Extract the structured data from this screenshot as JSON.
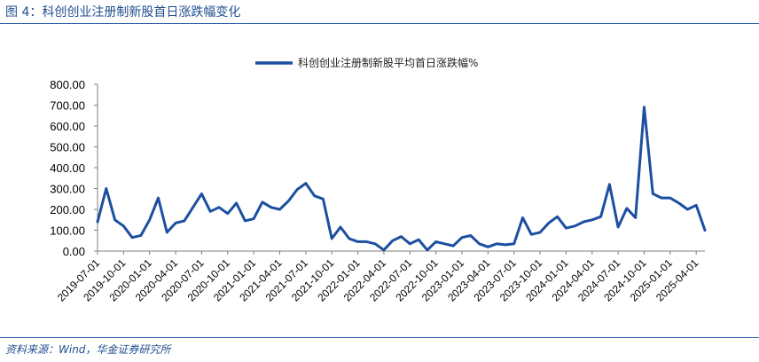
{
  "figure": {
    "title": "图 4：科创创业注册制新股首日涨跌幅变化",
    "source": "资料来源：Wind，华金证券研究所"
  },
  "colors": {
    "line": "#1d4fa0",
    "rule": "#2f63a8",
    "title": "#1f4e8f"
  },
  "chart_data": {
    "type": "line",
    "title": "",
    "xlabel": "",
    "ylabel": "",
    "ylim": [
      0,
      800
    ],
    "yticks": [
      "800.00",
      "700.00",
      "600.00",
      "500.00",
      "400.00",
      "300.00",
      "200.00",
      "100.00",
      "0.00"
    ],
    "xtick_labels": [
      "2019-07-01",
      "2019-10-01",
      "2020-01-01",
      "2020-04-01",
      "2020-07-01",
      "2020-10-01",
      "2021-01-01",
      "2021-04-01",
      "2021-07-01",
      "2021-10-01",
      "2022-01-01",
      "2022-04-01",
      "2022-07-01",
      "2022-10-01",
      "2023-01-01",
      "2023-04-01",
      "2023-07-01",
      "2023-10-01",
      "2024-01-01",
      "2024-04-01",
      "2024-07-01",
      "2024-10-01",
      "2025-01-01",
      "2025-04-01"
    ],
    "legend": {
      "placement": "top-center"
    },
    "grid": false,
    "series": [
      {
        "name": "科创创业注册制新股平均首日涨跌幅%",
        "x": [
          "2019-07",
          "2019-08",
          "2019-09",
          "2019-10",
          "2019-11",
          "2019-12",
          "2020-01",
          "2020-02",
          "2020-03",
          "2020-04",
          "2020-05",
          "2020-06",
          "2020-07",
          "2020-08",
          "2020-09",
          "2020-10",
          "2020-11",
          "2020-12",
          "2021-01",
          "2021-02",
          "2021-03",
          "2021-04",
          "2021-05",
          "2021-06",
          "2021-07",
          "2021-08",
          "2021-09",
          "2021-10",
          "2021-11",
          "2021-12",
          "2022-01",
          "2022-02",
          "2022-03",
          "2022-04",
          "2022-05",
          "2022-06",
          "2022-07",
          "2022-08",
          "2022-09",
          "2022-10",
          "2022-11",
          "2022-12",
          "2023-01",
          "2023-02",
          "2023-03",
          "2023-04",
          "2023-05",
          "2023-06",
          "2023-07",
          "2023-08",
          "2023-09",
          "2023-10",
          "2023-11",
          "2023-12",
          "2024-01",
          "2024-02",
          "2024-03",
          "2024-04",
          "2024-05",
          "2024-06",
          "2024-07",
          "2024-08",
          "2024-09",
          "2024-10",
          "2024-11",
          "2024-12",
          "2025-01",
          "2025-02",
          "2025-03",
          "2025-04",
          "2025-05"
        ],
        "values": [
          140,
          300,
          150,
          120,
          65,
          75,
          150,
          255,
          90,
          135,
          145,
          210,
          275,
          190,
          210,
          180,
          230,
          145,
          155,
          235,
          210,
          200,
          240,
          295,
          325,
          265,
          250,
          60,
          115,
          60,
          45,
          45,
          35,
          5,
          50,
          70,
          35,
          55,
          5,
          45,
          35,
          25,
          65,
          75,
          35,
          20,
          35,
          30,
          35,
          160,
          80,
          90,
          135,
          165,
          110,
          120,
          140,
          150,
          165,
          320,
          115,
          205,
          160,
          690,
          275,
          255,
          255,
          230,
          200,
          220,
          100
        ]
      }
    ]
  }
}
